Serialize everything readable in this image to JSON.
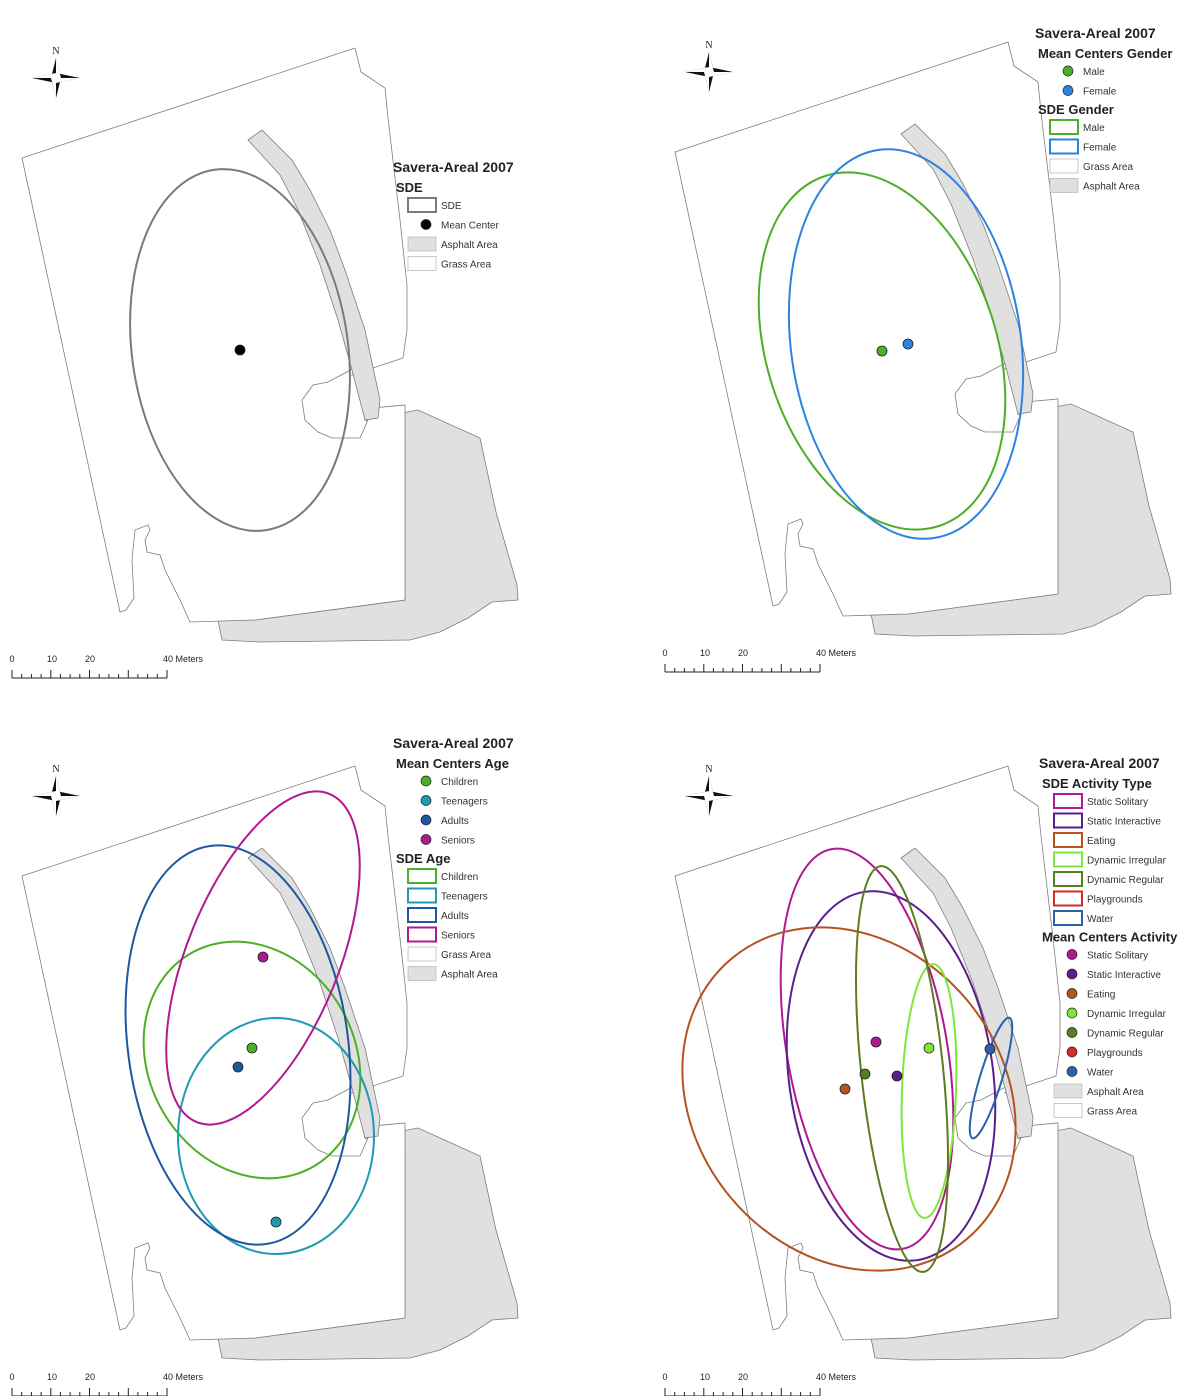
{
  "colors": {
    "sde_gray": "#7a7a7a",
    "asphalt_fill": "#e0e0e0",
    "green": "#4caf25",
    "blue": "#2b83e0",
    "teal": "#1e9bb0",
    "navy": "#1f57a0",
    "magenta": "#b0198f",
    "purple": "#5a1f8c",
    "orange": "#b5531f",
    "lime": "#7de83a",
    "olive": "#5a7d1e",
    "red": "#d42a2a",
    "water_blue": "#2a62b0"
  },
  "north_label": "N",
  "scale_bar": {
    "ticks": [
      "0",
      "10",
      "20",
      "40 Meters"
    ]
  },
  "panels": [
    {
      "title": "Savera-Areal 2007",
      "legend": [
        {
          "type": "heading",
          "text": "SDE"
        },
        {
          "type": "box",
          "text": "SDE",
          "stroke": "#7a7a7a",
          "fill": "#ffffff"
        },
        {
          "type": "dot",
          "text": "Mean Center",
          "fill": "#000000"
        },
        {
          "type": "box",
          "text": "Asphalt Area",
          "stroke": "#bbbbbb",
          "fill": "#e0e0e0"
        },
        {
          "type": "box",
          "text": "Grass Area",
          "stroke": "#bbbbbb",
          "fill": "#ffffff"
        }
      ],
      "ellipses": [
        {
          "name": "SDE",
          "color": "#7a7a7a"
        }
      ],
      "centers": [
        {
          "name": "Mean Center",
          "color": "#000000"
        }
      ]
    },
    {
      "title": "Savera-Areal 2007",
      "legend": [
        {
          "type": "heading",
          "text": "Mean Centers Gender"
        },
        {
          "type": "dot",
          "text": "Male",
          "fill": "#4caf25"
        },
        {
          "type": "dot",
          "text": "Female",
          "fill": "#2b83e0"
        },
        {
          "type": "heading",
          "text": "SDE Gender"
        },
        {
          "type": "box",
          "text": "Male",
          "stroke": "#4caf25",
          "fill": "#ffffff"
        },
        {
          "type": "box",
          "text": "Female",
          "stroke": "#2b83e0",
          "fill": "#ffffff"
        },
        {
          "type": "box",
          "text": "Grass Area",
          "stroke": "#bbbbbb",
          "fill": "#ffffff"
        },
        {
          "type": "box",
          "text": "Asphalt Area",
          "stroke": "#bbbbbb",
          "fill": "#e0e0e0"
        }
      ],
      "ellipses": [
        {
          "name": "Male",
          "color": "#4caf25"
        },
        {
          "name": "Female",
          "color": "#2b83e0"
        }
      ],
      "centers": [
        {
          "name": "Male",
          "color": "#4caf25"
        },
        {
          "name": "Female",
          "color": "#2b83e0"
        }
      ]
    },
    {
      "title": "Savera-Areal 2007",
      "legend": [
        {
          "type": "heading",
          "text": "Mean Centers Age"
        },
        {
          "type": "dot",
          "text": "Children",
          "fill": "#4caf25"
        },
        {
          "type": "dot",
          "text": "Teenagers",
          "fill": "#1e9bb0"
        },
        {
          "type": "dot",
          "text": "Adults",
          "fill": "#1f57a0"
        },
        {
          "type": "dot",
          "text": "Seniors",
          "fill": "#b0198f"
        },
        {
          "type": "heading",
          "text": "SDE Age"
        },
        {
          "type": "box",
          "text": "Children",
          "stroke": "#4caf25",
          "fill": "#ffffff"
        },
        {
          "type": "box",
          "text": "Teenagers",
          "stroke": "#1e9bb0",
          "fill": "#ffffff"
        },
        {
          "type": "box",
          "text": "Adults",
          "stroke": "#1f57a0",
          "fill": "#ffffff"
        },
        {
          "type": "box",
          "text": "Seniors",
          "stroke": "#b0198f",
          "fill": "#ffffff"
        },
        {
          "type": "box",
          "text": "Grass Area",
          "stroke": "#bbbbbb",
          "fill": "#ffffff"
        },
        {
          "type": "box",
          "text": "Asphalt Area",
          "stroke": "#bbbbbb",
          "fill": "#e0e0e0"
        }
      ],
      "ellipses": [
        {
          "name": "Children",
          "color": "#4caf25"
        },
        {
          "name": "Teenagers",
          "color": "#1e9bb0"
        },
        {
          "name": "Adults",
          "color": "#1f57a0"
        },
        {
          "name": "Seniors",
          "color": "#b0198f"
        }
      ],
      "centers": [
        {
          "name": "Children",
          "color": "#4caf25"
        },
        {
          "name": "Teenagers",
          "color": "#1e9bb0"
        },
        {
          "name": "Adults",
          "color": "#1f57a0"
        },
        {
          "name": "Seniors",
          "color": "#b0198f"
        }
      ]
    },
    {
      "title": "Savera-Areal 2007",
      "legend": [
        {
          "type": "heading",
          "text": "SDE Activity Type"
        },
        {
          "type": "box",
          "text": "Static Solitary",
          "stroke": "#b0198f",
          "fill": "#ffffff"
        },
        {
          "type": "box",
          "text": "Static Interactive",
          "stroke": "#5a1f8c",
          "fill": "#ffffff"
        },
        {
          "type": "box",
          "text": "Eating",
          "stroke": "#b5531f",
          "fill": "#ffffff"
        },
        {
          "type": "box",
          "text": "Dynamic Irregular",
          "stroke": "#7de83a",
          "fill": "#ffffff"
        },
        {
          "type": "box",
          "text": "Dynamic Regular",
          "stroke": "#5a7d1e",
          "fill": "#ffffff"
        },
        {
          "type": "box",
          "text": "Playgrounds",
          "stroke": "#d42a2a",
          "fill": "#ffffff"
        },
        {
          "type": "box",
          "text": "Water",
          "stroke": "#2a62b0",
          "fill": "#ffffff"
        },
        {
          "type": "heading",
          "text": "Mean Centers Activity"
        },
        {
          "type": "dot",
          "text": "Static Solitary",
          "fill": "#b0198f"
        },
        {
          "type": "dot",
          "text": "Static Interactive",
          "fill": "#5a1f8c"
        },
        {
          "type": "dot",
          "text": "Eating",
          "fill": "#b5531f"
        },
        {
          "type": "dot",
          "text": "Dynamic Irregular",
          "fill": "#7de83a"
        },
        {
          "type": "dot",
          "text": "Dynamic Regular",
          "fill": "#5a7d1e"
        },
        {
          "type": "dot",
          "text": "Playgrounds",
          "fill": "#d42a2a"
        },
        {
          "type": "dot",
          "text": "Water",
          "fill": "#2a62b0"
        },
        {
          "type": "box",
          "text": "Asphalt Area",
          "stroke": "#bbbbbb",
          "fill": "#e0e0e0"
        },
        {
          "type": "box",
          "text": "Grass Area",
          "stroke": "#bbbbbb",
          "fill": "#ffffff"
        }
      ],
      "ellipses": [
        {
          "name": "Static Solitary",
          "color": "#b0198f"
        },
        {
          "name": "Static Interactive",
          "color": "#5a1f8c"
        },
        {
          "name": "Eating",
          "color": "#b5531f"
        },
        {
          "name": "Dynamic Irregular",
          "color": "#7de83a"
        },
        {
          "name": "Dynamic Regular",
          "color": "#5a7d1e"
        },
        {
          "name": "Water",
          "color": "#2a62b0"
        }
      ],
      "centers": [
        {
          "name": "Static Solitary",
          "color": "#b0198f"
        },
        {
          "name": "Static Interactive",
          "color": "#5a1f8c"
        },
        {
          "name": "Eating",
          "color": "#b5531f"
        },
        {
          "name": "Dynamic Irregular",
          "color": "#7de83a"
        },
        {
          "name": "Dynamic Regular",
          "color": "#5a7d1e"
        },
        {
          "name": "Water",
          "color": "#2a62b0"
        }
      ]
    }
  ]
}
